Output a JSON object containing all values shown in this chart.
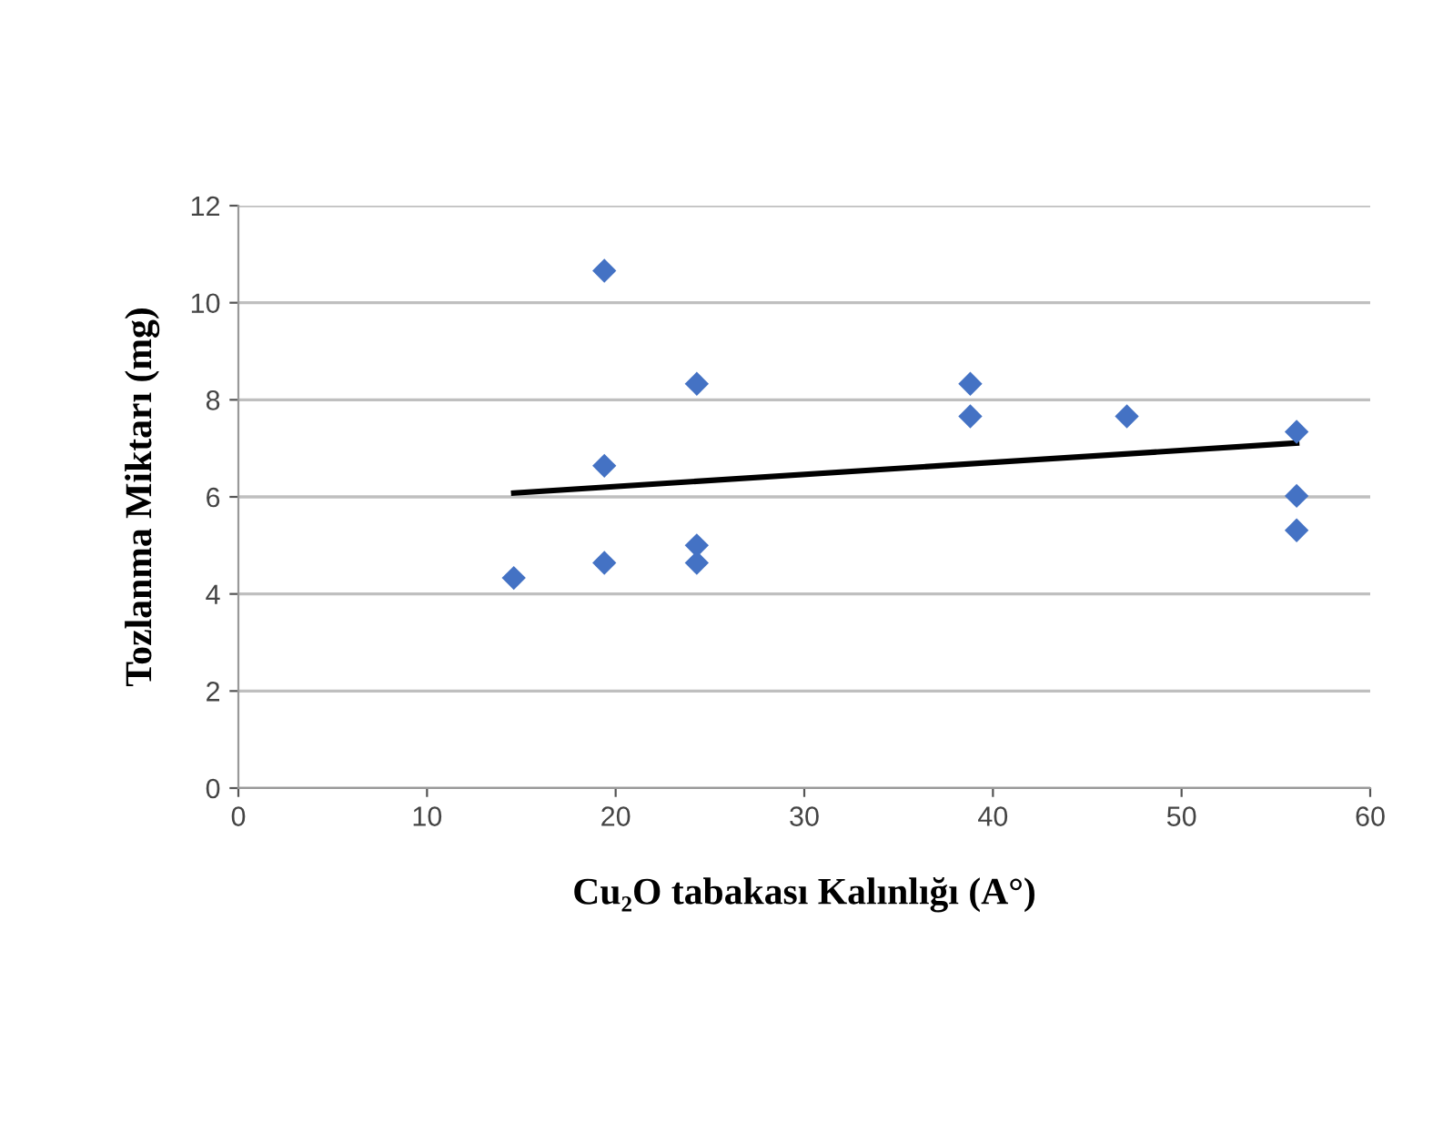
{
  "chart_data": {
    "type": "scatter",
    "xlabel": "Cu₂O tabakası Kalınlığı (A°)",
    "ylabel": "Tozlanma Miktarı (mg)",
    "xlim": [
      0,
      60
    ],
    "xticks": [
      0,
      10,
      20,
      30,
      40,
      50,
      60
    ],
    "ylim": [
      0,
      12
    ],
    "yticks": [
      0,
      2,
      4,
      6,
      8,
      10,
      12
    ],
    "grid": "y",
    "legend": false,
    "series": [
      {
        "color": "#4472c4",
        "marker": "diamond",
        "x": [
          14.6,
          19.4,
          19.4,
          19.4,
          24.3,
          24.3,
          24.3,
          38.8,
          38.8,
          47.1,
          56.1,
          56.1,
          56.1
        ],
        "values": [
          4.33,
          10.66,
          6.64,
          4.64,
          8.33,
          5.0,
          4.64,
          8.33,
          7.66,
          7.66,
          7.34,
          6.02,
          5.31
        ]
      },
      {
        "type": "line",
        "color": "#000000",
        "marker": "none",
        "x": [
          14.6,
          56.1
        ],
        "values": [
          6.08,
          7.11
        ]
      }
    ]
  }
}
